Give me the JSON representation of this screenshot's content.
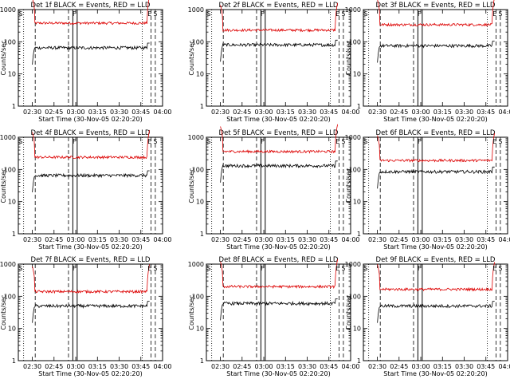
{
  "chart_data": {
    "type": "line",
    "yscale": "log",
    "ylim": [
      1,
      1000
    ],
    "xlim": [
      "02:20:20",
      "04:00"
    ],
    "ytick_labels": [
      "1",
      "10",
      "100",
      "1000"
    ],
    "xtick_labels": [
      "02:30",
      "02:45",
      "03:00",
      "03:15",
      "03:30",
      "03:45",
      "04:00"
    ],
    "ylabel": "Counts/sec",
    "xlabel": "Start Time (30-Nov-05 02:20:20)",
    "series_colors": {
      "events": "#000000",
      "lld": "#dd0000"
    },
    "markers": {
      "start": "S",
      "flare": "F",
      "end": "E"
    },
    "panels": [
      {
        "title": "Det 1f BLACK = Events, RED = LLD",
        "lld": 380,
        "events": 65,
        "vlines": {
          "dotted": [
            "02:24",
            "03:46"
          ],
          "dashed": [
            "02:32",
            "02:55",
            "03:52",
            "03:55"
          ],
          "solid": [
            "02:58",
            "03:01"
          ]
        },
        "labels": [
          {
            "text": "S",
            "at": "02:22"
          },
          {
            "text": "F",
            "at": "02:59"
          },
          {
            "text": "E",
            "at": "03:51"
          },
          {
            "text": "S",
            "at": "03:55"
          }
        ]
      },
      {
        "title": "Det 2f BLACK = Events, RED = LLD",
        "lld": 230,
        "events": 80,
        "vlines": {
          "dotted": [
            "02:24",
            "03:46"
          ],
          "dashed": [
            "02:32",
            "02:55",
            "03:52",
            "03:55"
          ],
          "solid": [
            "02:58",
            "03:01"
          ]
        },
        "labels": [
          {
            "text": "S",
            "at": "02:22"
          },
          {
            "text": "F",
            "at": "02:59"
          },
          {
            "text": "E",
            "at": "03:51"
          },
          {
            "text": "S",
            "at": "03:55"
          }
        ]
      },
      {
        "title": "Det 3f BLACK = Events, RED = LLD",
        "lld": 340,
        "events": 75,
        "vlines": {
          "dotted": [
            "02:24",
            "03:46"
          ],
          "dashed": [
            "02:32",
            "02:55",
            "03:52",
            "03:55"
          ],
          "solid": [
            "02:58",
            "03:01"
          ]
        },
        "labels": [
          {
            "text": "S",
            "at": "02:22"
          },
          {
            "text": "F",
            "at": "02:59"
          },
          {
            "text": "E",
            "at": "03:51"
          },
          {
            "text": "S",
            "at": "03:55"
          }
        ]
      },
      {
        "title": "Det 4f BLACK = Events, RED = LLD",
        "lld": 240,
        "events": 65,
        "vlines": {
          "dotted": [
            "02:24",
            "03:46"
          ],
          "dashed": [
            "02:32",
            "02:55",
            "03:52",
            "03:55"
          ],
          "solid": [
            "02:58",
            "03:01"
          ]
        },
        "labels": [
          {
            "text": "S",
            "at": "02:22"
          },
          {
            "text": "F",
            "at": "02:59"
          },
          {
            "text": "E",
            "at": "03:51"
          },
          {
            "text": "S",
            "at": "03:55"
          }
        ]
      },
      {
        "title": "Det 5f BLACK = Events, RED = LLD",
        "lld": 360,
        "events": 130,
        "vlines": {
          "dotted": [
            "02:24",
            "03:46"
          ],
          "dashed": [
            "02:32",
            "02:55",
            "03:52",
            "03:55"
          ],
          "solid": [
            "02:58",
            "03:01"
          ]
        },
        "labels": [
          {
            "text": "S",
            "at": "02:22"
          },
          {
            "text": "F",
            "at": "02:59"
          },
          {
            "text": "E",
            "at": "03:51"
          },
          {
            "text": "S",
            "at": "03:55"
          }
        ]
      },
      {
        "title": "Det 6f BLACK = Events, RED = LLD",
        "lld": 190,
        "events": 85,
        "vlines": {
          "dotted": [
            "02:24",
            "03:46"
          ],
          "dashed": [
            "02:32",
            "02:55",
            "03:52",
            "03:55"
          ],
          "solid": [
            "02:58",
            "03:01"
          ]
        },
        "labels": [
          {
            "text": "S",
            "at": "02:22"
          },
          {
            "text": "F",
            "at": "02:59"
          },
          {
            "text": "E",
            "at": "03:51"
          },
          {
            "text": "S",
            "at": "03:55"
          }
        ]
      },
      {
        "title": "Det 7f BLACK = Events, RED = LLD",
        "lld": 140,
        "events": 50,
        "vlines": {
          "dotted": [
            "02:24",
            "03:46"
          ],
          "dashed": [
            "02:32",
            "02:55",
            "03:52",
            "03:55"
          ],
          "solid": [
            "02:58",
            "03:01"
          ]
        },
        "labels": [
          {
            "text": "S",
            "at": "02:22"
          },
          {
            "text": "F",
            "at": "02:59"
          },
          {
            "text": "E",
            "at": "03:51"
          },
          {
            "text": "S",
            "at": "03:55"
          }
        ]
      },
      {
        "title": "Det 8f BLACK = Events, RED = LLD",
        "lld": 200,
        "events": 60,
        "vlines": {
          "dotted": [
            "02:24",
            "03:46"
          ],
          "dashed": [
            "02:32",
            "02:55",
            "03:52",
            "03:55"
          ],
          "solid": [
            "02:58",
            "03:01"
          ]
        },
        "labels": [
          {
            "text": "S",
            "at": "02:22"
          },
          {
            "text": "F",
            "at": "02:59"
          },
          {
            "text": "E",
            "at": "03:51"
          },
          {
            "text": "S",
            "at": "03:55"
          }
        ]
      },
      {
        "title": "Det 9f BLACK = Events, RED = LLD",
        "lld": 165,
        "events": 50,
        "vlines": {
          "dotted": [
            "02:24",
            "03:46"
          ],
          "dashed": [
            "02:32",
            "02:55",
            "03:52",
            "03:55"
          ],
          "solid": [
            "02:58",
            "03:01"
          ]
        },
        "labels": [
          {
            "text": "S",
            "at": "02:22"
          },
          {
            "text": "F",
            "at": "02:59"
          },
          {
            "text": "E",
            "at": "03:51"
          },
          {
            "text": "S",
            "at": "03:55"
          }
        ]
      }
    ]
  }
}
